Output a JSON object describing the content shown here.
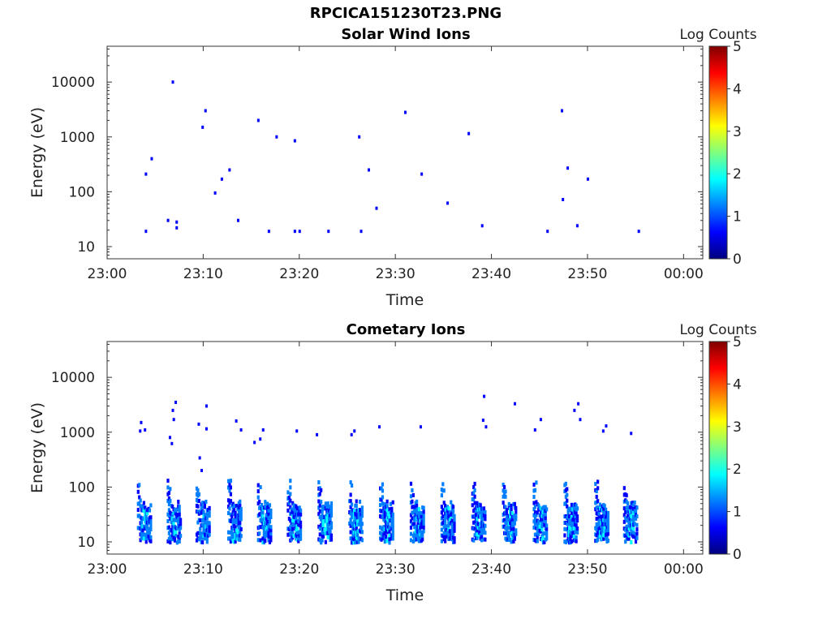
{
  "figure": {
    "title": "RPCICA151230T23.PNG"
  },
  "colors": {
    "colormap": [
      "#00007f",
      "#0000ff",
      "#007fff",
      "#00ffff",
      "#7fff7f",
      "#ffff00",
      "#ff7f00",
      "#ff0000",
      "#7f0000"
    ],
    "axis": "#333333"
  },
  "chart_data": [
    {
      "type": "heatmap",
      "title": "Solar Wind Ions",
      "xlabel": "Time",
      "ylabel": "Energy (eV)",
      "yscale": "log",
      "xlim": [
        "23:00",
        "00:02"
      ],
      "ylim": [
        6,
        45000
      ],
      "xticks": [
        "23:00",
        "23:10",
        "23:20",
        "23:30",
        "23:40",
        "23:50",
        "00:00"
      ],
      "yticks": [
        "10",
        "100",
        "1000",
        "10000"
      ],
      "colorbar": {
        "label": "Log Counts",
        "range": [
          0,
          5
        ],
        "ticks": [
          "0",
          "1",
          "2",
          "3",
          "4",
          "5"
        ]
      },
      "points_minutes_energy": [
        [
          4.0,
          19,
          0.8
        ],
        [
          4.0,
          210,
          0.8
        ],
        [
          4.6,
          400,
          0.8
        ],
        [
          6.3,
          30,
          0.8
        ],
        [
          6.8,
          10000,
          0.8
        ],
        [
          7.2,
          28,
          0.8
        ],
        [
          7.2,
          22,
          0.8
        ],
        [
          9.9,
          1500,
          0.8
        ],
        [
          10.2,
          3000,
          0.8
        ],
        [
          11.2,
          95,
          0.8
        ],
        [
          11.9,
          170,
          0.8
        ],
        [
          12.7,
          250,
          0.8
        ],
        [
          13.6,
          30,
          0.8
        ],
        [
          15.7,
          2000,
          0.8
        ],
        [
          16.8,
          19,
          0.8
        ],
        [
          17.6,
          1000,
          0.8
        ],
        [
          19.5,
          850,
          0.8
        ],
        [
          19.5,
          19,
          0.8
        ],
        [
          20.0,
          19,
          0.8
        ],
        [
          23.0,
          19,
          0.8
        ],
        [
          26.2,
          1000,
          0.8
        ],
        [
          26.4,
          19,
          0.8
        ],
        [
          27.2,
          250,
          0.8
        ],
        [
          28.0,
          50,
          0.8
        ],
        [
          31.0,
          2800,
          0.8
        ],
        [
          32.7,
          210,
          0.8
        ],
        [
          35.4,
          62,
          0.8
        ],
        [
          37.6,
          1150,
          0.8
        ],
        [
          39.0,
          24,
          0.8
        ],
        [
          45.8,
          19,
          0.8
        ],
        [
          47.3,
          3000,
          0.8
        ],
        [
          47.4,
          72,
          0.8
        ],
        [
          47.9,
          270,
          0.8
        ],
        [
          48.9,
          24,
          0.8
        ],
        [
          50.0,
          170,
          0.8
        ],
        [
          55.3,
          19,
          0.8
        ]
      ]
    },
    {
      "type": "heatmap",
      "title": "Cometary Ions",
      "xlabel": "Time",
      "ylabel": "Energy (eV)",
      "yscale": "log",
      "xlim": [
        "23:00",
        "00:02"
      ],
      "ylim": [
        6,
        45000
      ],
      "xticks": [
        "23:00",
        "23:10",
        "23:20",
        "23:30",
        "23:40",
        "23:50",
        "00:00"
      ],
      "yticks": [
        "10",
        "100",
        "1000",
        "10000"
      ],
      "colorbar": {
        "label": "Log Counts",
        "range": [
          0,
          5
        ],
        "ticks": [
          "0",
          "1",
          "2",
          "3",
          "4",
          "5"
        ]
      },
      "bursts_start_minutes": [
        3.2,
        6.3,
        9.3,
        12.6,
        15.7,
        18.8,
        22.0,
        25.2,
        28.4,
        31.6,
        34.8,
        38.0,
        41.2,
        44.4,
        47.6,
        50.8,
        53.8
      ],
      "burst_energy_range": [
        10,
        130
      ],
      "points_minutes_energy": [
        [
          3.5,
          1500,
          0.8
        ],
        [
          3.4,
          1050,
          0.8
        ],
        [
          3.9,
          1100,
          0.8
        ],
        [
          6.8,
          2500,
          0.8
        ],
        [
          7.1,
          3500,
          0.8
        ],
        [
          6.9,
          1700,
          0.8
        ],
        [
          6.5,
          800,
          0.8
        ],
        [
          6.7,
          620,
          0.8
        ],
        [
          9.5,
          1400,
          0.8
        ],
        [
          10.3,
          3000,
          0.8
        ],
        [
          10.3,
          1150,
          0.8
        ],
        [
          9.6,
          340,
          0.8
        ],
        [
          9.8,
          200,
          0.8
        ],
        [
          13.4,
          1600,
          0.8
        ],
        [
          13.9,
          1100,
          0.8
        ],
        [
          15.3,
          650,
          0.8
        ],
        [
          15.9,
          750,
          0.8
        ],
        [
          16.2,
          1100,
          0.8
        ],
        [
          19.7,
          1050,
          0.8
        ],
        [
          21.8,
          900,
          0.8
        ],
        [
          25.4,
          900,
          0.8
        ],
        [
          25.7,
          1050,
          0.8
        ],
        [
          28.3,
          1250,
          0.8
        ],
        [
          32.6,
          1250,
          0.8
        ],
        [
          39.2,
          4500,
          0.8
        ],
        [
          39.1,
          1650,
          0.8
        ],
        [
          39.4,
          1250,
          0.8
        ],
        [
          42.4,
          3300,
          0.8
        ],
        [
          44.5,
          1100,
          0.8
        ],
        [
          45.1,
          1700,
          0.8
        ],
        [
          48.6,
          2500,
          0.8
        ],
        [
          49.0,
          3300,
          0.8
        ],
        [
          49.2,
          1700,
          0.8
        ],
        [
          51.6,
          1050,
          0.8
        ],
        [
          51.9,
          1300,
          0.8
        ],
        [
          54.5,
          950,
          0.8
        ]
      ]
    }
  ]
}
